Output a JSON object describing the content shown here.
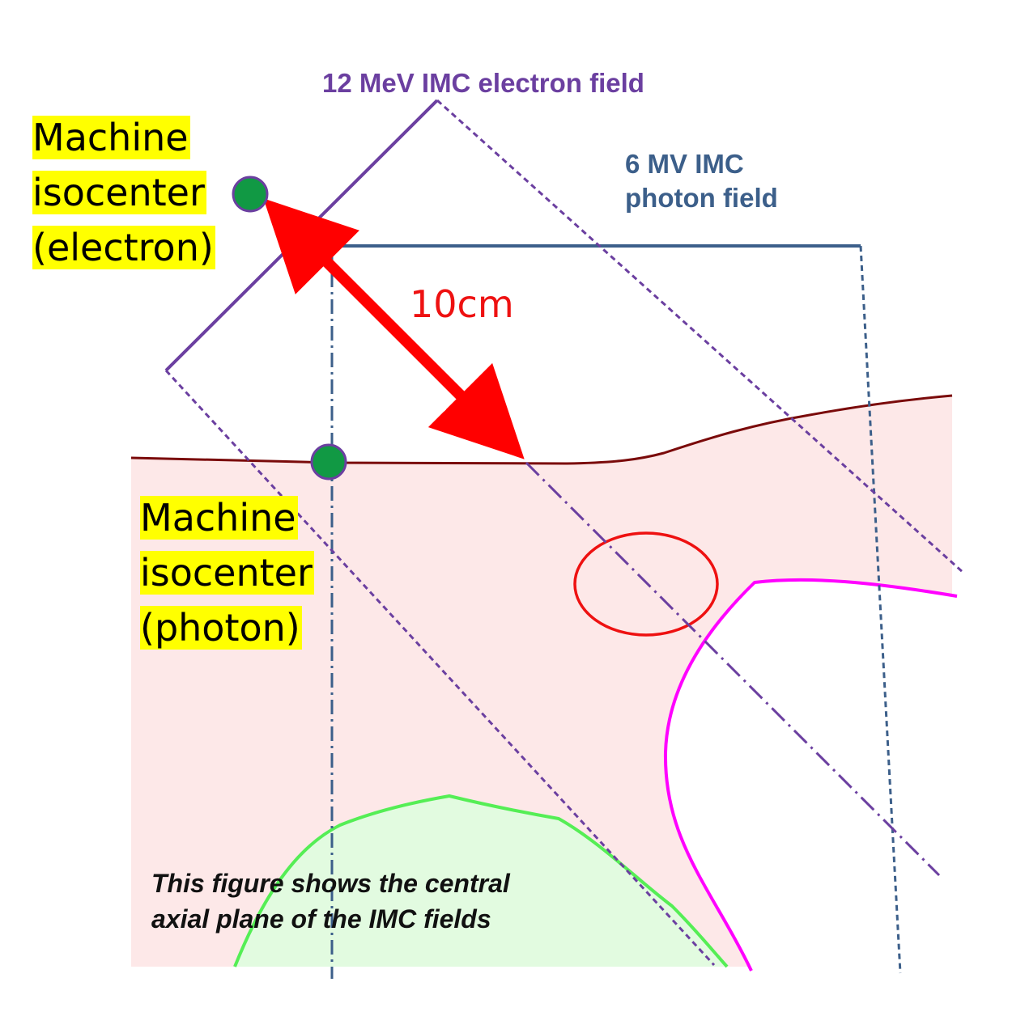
{
  "labels": {
    "electron_field": "12 MeV IMC electron field",
    "photon_field_line1": "6 MV IMC",
    "photon_field_line2": "photon field",
    "distance": "10cm",
    "electron_isocenter": [
      "Machine",
      "isocenter",
      "(electron)"
    ],
    "photon_isocenter": [
      "Machine",
      "isocenter",
      "(photon)"
    ],
    "caption": [
      "This figure shows the central",
      "axial plane of the IMC fields"
    ]
  },
  "colors": {
    "electron_field": "#6b3fa0",
    "photon_field": "#3c5f8a",
    "body_outline": "#7a0a0a",
    "body_fill": "#fde8e8",
    "tumor": "#ee1111",
    "organ_magenta": "#ff00ff",
    "organ_green": "#55ee55",
    "organ_green_fill": "#e2fbe0",
    "arrow": "#ff0000",
    "isocenter_marker": "#119944",
    "highlight": "#ffff00"
  },
  "icons": {
    "electron_isocenter": "green-circle-marker",
    "photon_isocenter": "green-circle-marker",
    "distance_arrow": "double-headed-arrow"
  }
}
